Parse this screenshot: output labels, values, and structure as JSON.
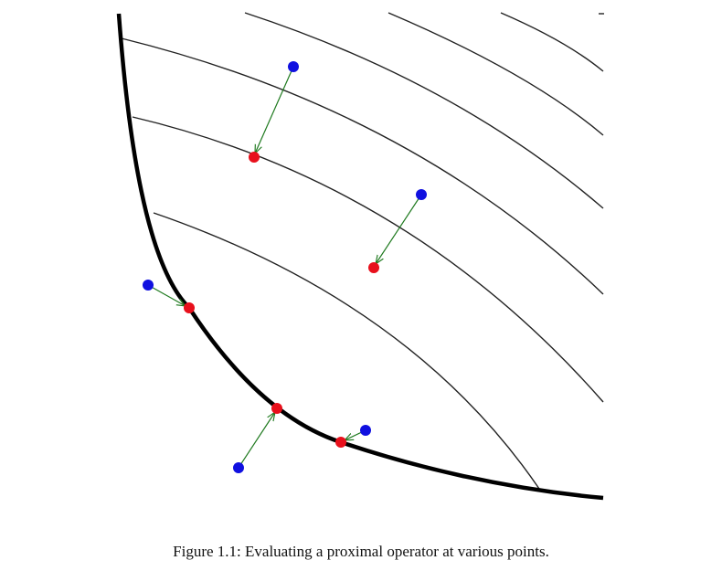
{
  "figure": {
    "caption": "Figure 1.1: Evaluating a proximal operator at various points."
  }
}
